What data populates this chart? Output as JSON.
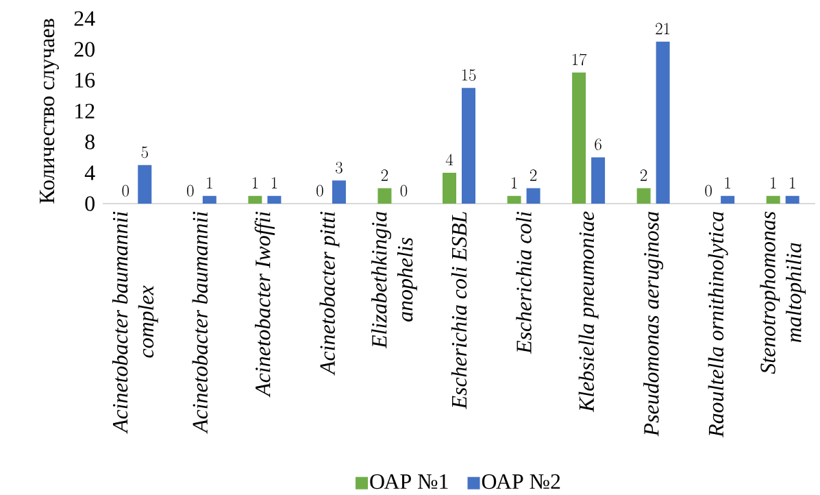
{
  "chart_data": {
    "type": "bar",
    "ylabel": "Количество случаев",
    "categories": [
      "Acinetobacter baumannii complex",
      "Acinetobacter baumannii",
      "Acinetobacter Iwoffii",
      "Acinetobacter pitti",
      "Elizabethkingia anophelis",
      "Escherichia coli ESBL",
      "Escherichia coli",
      "Klebsiella pneumoniae",
      "Pseudomonas aeruginosa",
      "Raoultella ornithinolytica",
      "Stenotrophomonas maltophilia"
    ],
    "series": [
      {
        "name": "ОАР №1",
        "color": "#70ad47",
        "values": [
          0,
          0,
          1,
          0,
          2,
          4,
          1,
          17,
          2,
          0,
          1
        ]
      },
      {
        "name": "ОАР №2",
        "color": "#4472c4",
        "values": [
          5,
          1,
          1,
          3,
          0,
          15,
          2,
          6,
          21,
          1,
          1
        ]
      }
    ],
    "ylim": [
      0,
      24
    ],
    "yticks": [
      0,
      4,
      8,
      12,
      16,
      20,
      24
    ],
    "data_labels": true,
    "legend": "bottom"
  }
}
